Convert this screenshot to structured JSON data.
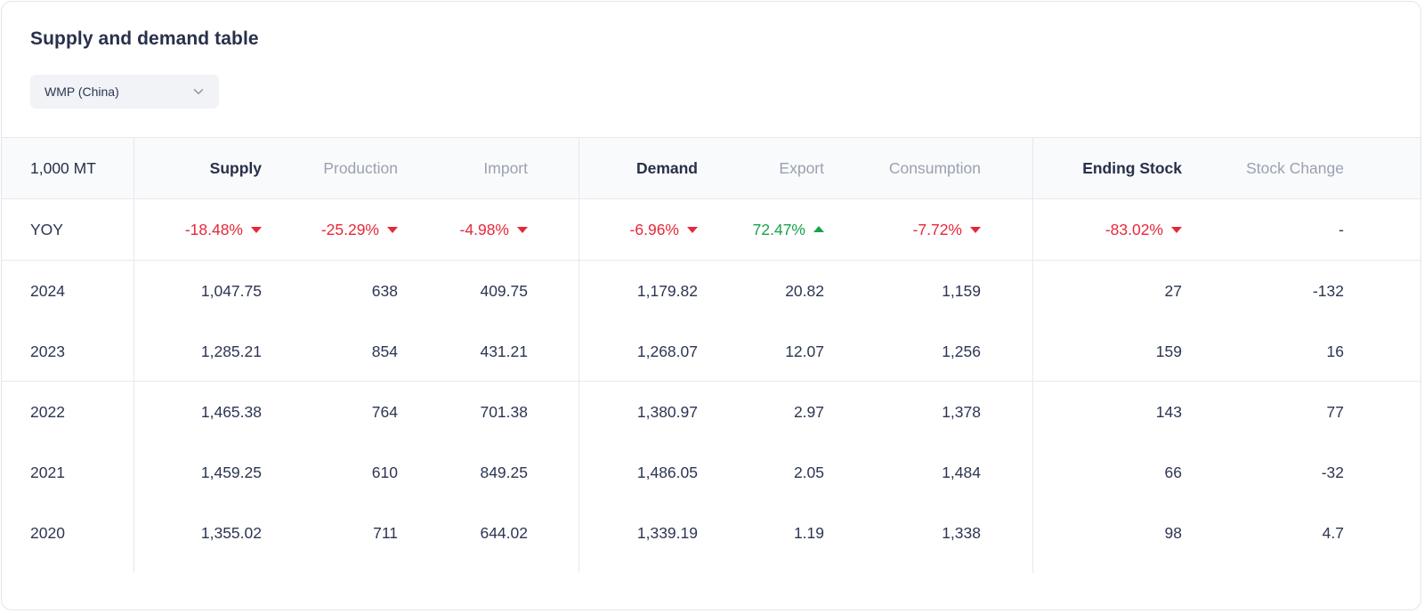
{
  "title": "Supply and demand table",
  "dropdown": {
    "value": "WMP (China)",
    "icon": "chevron-down-icon"
  },
  "colors": {
    "negative": "#e5283a",
    "positive": "#16a34a",
    "text": "#2c3552",
    "muted": "#9aa1b1"
  },
  "table": {
    "unit": "1,000 MT",
    "headers": {
      "supply": "Supply",
      "production": "Production",
      "import": "Import",
      "demand": "Demand",
      "export": "Export",
      "consumption": "Consumption",
      "ending_stock": "Ending Stock",
      "stock_change": "Stock Change"
    },
    "yoy": {
      "label": "YOY",
      "supply": "-18.48%",
      "production": "-25.29%",
      "import": "-4.98%",
      "demand": "-6.96%",
      "export": "72.47%",
      "consumption": "-7.72%",
      "ending_stock": "-83.02%",
      "stock_change": "-"
    },
    "rows": [
      {
        "year": "2024",
        "supply": "1,047.75",
        "production": "638",
        "import": "409.75",
        "demand": "1,179.82",
        "export": "20.82",
        "consumption": "1,159",
        "ending_stock": "27",
        "stock_change": "-132"
      },
      {
        "year": "2023",
        "supply": "1,285.21",
        "production": "854",
        "import": "431.21",
        "demand": "1,268.07",
        "export": "12.07",
        "consumption": "1,256",
        "ending_stock": "159",
        "stock_change": "16"
      },
      {
        "year": "2022",
        "supply": "1,465.38",
        "production": "764",
        "import": "701.38",
        "demand": "1,380.97",
        "export": "2.97",
        "consumption": "1,378",
        "ending_stock": "143",
        "stock_change": "77"
      },
      {
        "year": "2021",
        "supply": "1,459.25",
        "production": "610",
        "import": "849.25",
        "demand": "1,486.05",
        "export": "2.05",
        "consumption": "1,484",
        "ending_stock": "66",
        "stock_change": "-32"
      },
      {
        "year": "2020",
        "supply": "1,355.02",
        "production": "711",
        "import": "644.02",
        "demand": "1,339.19",
        "export": "1.19",
        "consumption": "1,338",
        "ending_stock": "98",
        "stock_change": "4.7"
      }
    ]
  }
}
